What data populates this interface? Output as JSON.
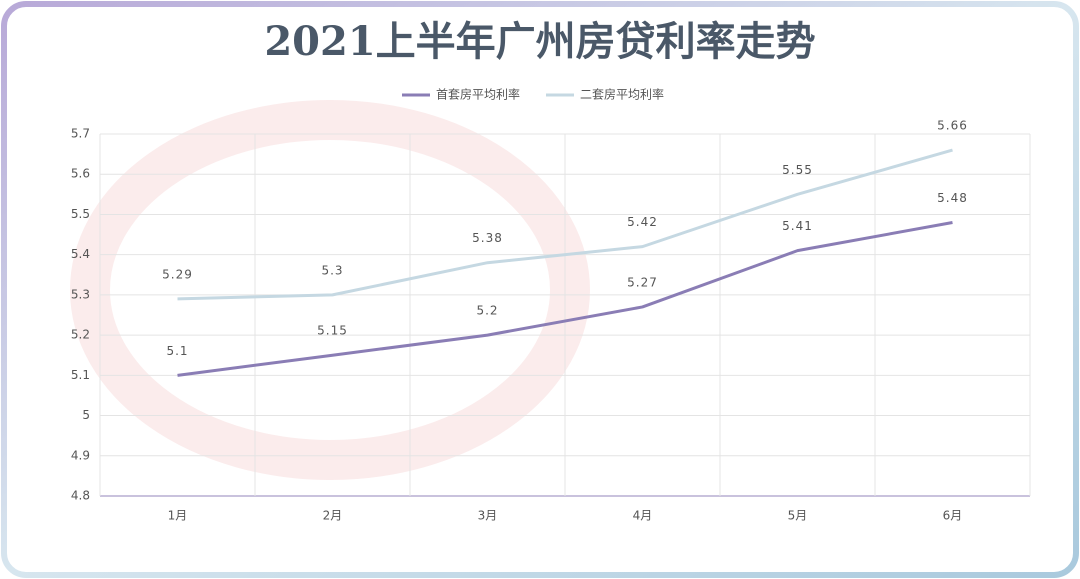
{
  "chart_data": {
    "type": "line",
    "title": "2021上半年广州房贷利率走势",
    "categories": [
      "1月",
      "2月",
      "3月",
      "4月",
      "5月",
      "6月"
    ],
    "series": [
      {
        "name": "首套房平均利率",
        "color": "#8a7db5",
        "values": [
          5.1,
          5.15,
          5.2,
          5.27,
          5.41,
          5.48
        ]
      },
      {
        "name": "二套房平均利率",
        "color": "#c5d8e2",
        "values": [
          5.29,
          5.3,
          5.38,
          5.42,
          5.55,
          5.66
        ]
      }
    ],
    "ylim": [
      4.8,
      5.7
    ],
    "yticks": [
      4.8,
      4.9,
      5,
      5.1,
      5.2,
      5.3,
      5.4,
      5.5,
      5.6,
      5.7
    ],
    "grid": true,
    "legend": "top"
  }
}
